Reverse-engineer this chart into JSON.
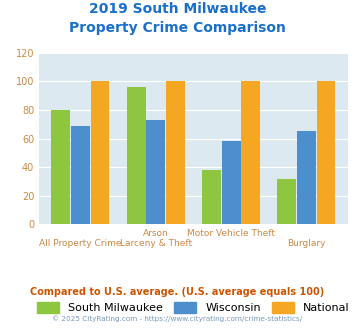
{
  "title_line1": "2019 South Milwaukee",
  "title_line2": "Property Crime Comparison",
  "title_color": "#1a6fcc",
  "x_labels_top": [
    "",
    "Arson",
    "Motor Vehicle Theft",
    ""
  ],
  "x_labels_bottom": [
    "All Property Crime",
    "Larceny & Theft",
    "",
    "Burglary"
  ],
  "south_milwaukee": [
    80,
    96,
    38,
    32
  ],
  "wisconsin": [
    69,
    73,
    58,
    65
  ],
  "national": [
    100,
    100,
    100,
    100
  ],
  "colors": {
    "south_milwaukee": "#8dc63f",
    "wisconsin": "#4d8fcc",
    "national": "#f5a623"
  },
  "ylim": [
    0,
    120
  ],
  "yticks": [
    0,
    20,
    40,
    60,
    80,
    100,
    120
  ],
  "plot_bg": "#dce9f0",
  "footer_text": "Compared to U.S. average. (U.S. average equals 100)",
  "footer_color": "#cc5500",
  "copyright_text": "© 2025 CityRating.com - https://www.cityrating.com/crime-statistics/",
  "copyright_color": "#7799bb",
  "legend_labels": [
    "South Milwaukee",
    "Wisconsin",
    "National"
  ],
  "xlabel_color": "#cc8844",
  "tick_color": "#cc8844",
  "grid_color": "#ffffff",
  "bar_width": 0.25,
  "bar_gap": 0.01
}
